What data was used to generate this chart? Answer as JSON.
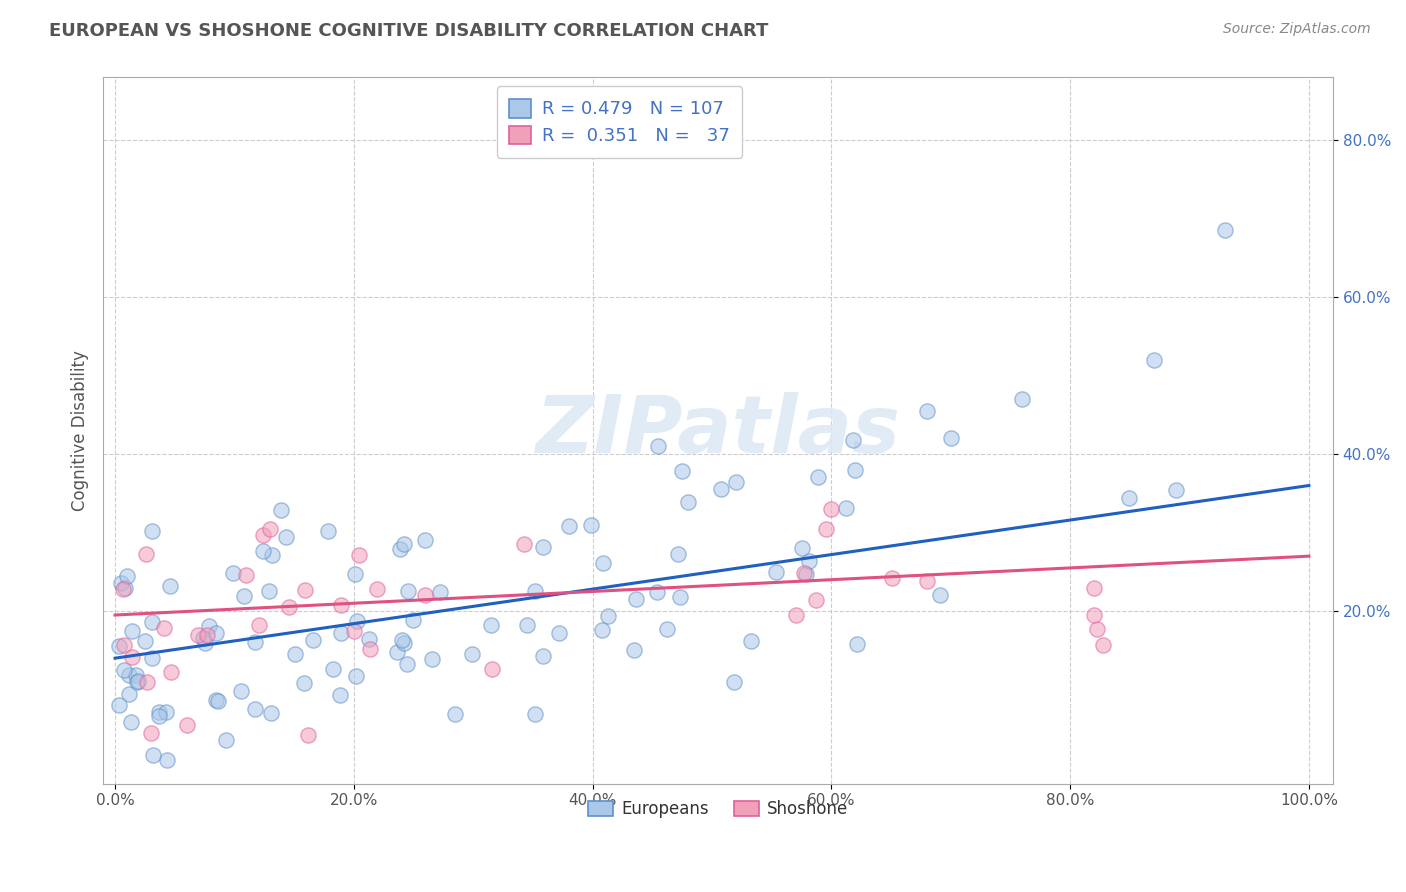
{
  "title": "EUROPEAN VS SHOSHONE COGNITIVE DISABILITY CORRELATION CHART",
  "source_text": "Source: ZipAtlas.com",
  "ylabel": "Cognitive Disability",
  "xlim": [
    -0.01,
    1.02
  ],
  "ylim": [
    -0.02,
    0.88
  ],
  "xticks": [
    0.0,
    0.2,
    0.4,
    0.6,
    0.8,
    1.0
  ],
  "xtick_labels": [
    "0.0%",
    "20.0%",
    "40.0%",
    "60.0%",
    "80.0%",
    "100.0%"
  ],
  "yticks": [
    0.2,
    0.4,
    0.6,
    0.8
  ],
  "ytick_labels": [
    "20.0%",
    "40.0%",
    "60.0%",
    "80.0%"
  ],
  "grid_color": "#c8c8c8",
  "background_color": "#ffffff",
  "european_color": "#aac8e8",
  "shoshone_color": "#f0a0b8",
  "european_edge_color": "#6090c8",
  "shoshone_edge_color": "#e060a0",
  "european_line_color": "#2060c0",
  "shoshone_line_color": "#e05080",
  "R_european": 0.479,
  "N_european": 107,
  "R_shoshone": 0.351,
  "N_shoshone": 37,
  "legend_label_european": "Europeans",
  "legend_label_shoshone": "Shoshone",
  "watermark": "ZIPatlas",
  "legend_value_color": "#4472c4",
  "legend_text_color": "#333333",
  "eu_intercept": 0.14,
  "eu_slope": 0.22,
  "sh_intercept": 0.195,
  "sh_slope": 0.075
}
